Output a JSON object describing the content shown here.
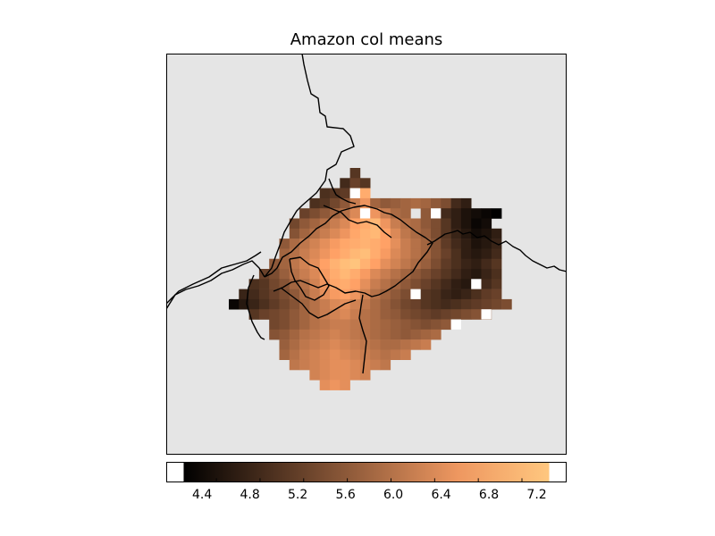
{
  "title": "Amazon col means",
  "colors": {
    "land_background": "#e5e5e5",
    "frame": "#000000",
    "river": "#000000",
    "cmap_low": "#000000",
    "cmap_high": "#ffc77f",
    "missing": "#ffffff"
  },
  "colorbar": {
    "cmap": "copper",
    "orientation": "horizontal",
    "placement": "bottom",
    "vmin": 4.1,
    "vmax": 7.45,
    "ticks": [
      "4.4",
      "4.8",
      "5.2",
      "5.6",
      "6.0",
      "6.4",
      "6.8",
      "7.2"
    ]
  },
  "chart_data": {
    "type": "heatmap",
    "title": "Amazon col means",
    "grid_origin_x": 0,
    "grid_origin_y": 0,
    "rows": [
      "............#..................",
      "...........###.................",
      ".........#####.....#...........",
      "........################.......",
      ".......###########.########....",
      "......####################.....",
      "......#####################....",
      ".....######################....",
      ".....######################....",
      "....#######################....",
      "...########################....",
      "..#########################....",
      ".##########################....",
      "############################...",
      "..########################.....",
      "....##################.........",
      "....#################..........",
      ".....###############...........",
      ".....#############.............",
      "......##########...............",
      "........######.................",
      ".........###..................."
    ],
    "values_note": "",
    "heat_values": [
      [
        0,
        0,
        0,
        0,
        0,
        0,
        0,
        0,
        0,
        0,
        0,
        0,
        5.0,
        0,
        0,
        0,
        0,
        0,
        0,
        0,
        0,
        0,
        0,
        0,
        0,
        0,
        0,
        0,
        0,
        0,
        0
      ],
      [
        0,
        0,
        0,
        0,
        0,
        0,
        0,
        0,
        0,
        0,
        0,
        4.8,
        5.2,
        5.0,
        0,
        0,
        0,
        0,
        0,
        0,
        0,
        0,
        0,
        0,
        0,
        0,
        0,
        0,
        0,
        0,
        0
      ],
      [
        0,
        0,
        0,
        0,
        0,
        0,
        0,
        0,
        0,
        4.9,
        5.0,
        5.1,
        6.6,
        7.0,
        0,
        0,
        0,
        0,
        0,
        0,
        0,
        0,
        0,
        0,
        0,
        0,
        0,
        0,
        0,
        0,
        0
      ],
      [
        0,
        0,
        0,
        0,
        0,
        0,
        0,
        0,
        4.9,
        5.0,
        5.3,
        5.6,
        6.2,
        6.6,
        5.8,
        5.6,
        5.7,
        5.8,
        5.9,
        5.8,
        5.6,
        5.4,
        4.8,
        4.6,
        0,
        0,
        0,
        0,
        0,
        0,
        0
      ],
      [
        0,
        0,
        0,
        0,
        0,
        0,
        0,
        5.2,
        5.4,
        5.6,
        5.8,
        6.0,
        6.4,
        6.8,
        6.6,
        6.2,
        5.9,
        5.8,
        0,
        5.6,
        5.2,
        4.8,
        4.6,
        4.4,
        4.3,
        4.2,
        4.1,
        0,
        0,
        0,
        0
      ],
      [
        0,
        0,
        0,
        0,
        0,
        0,
        5.3,
        5.6,
        5.8,
        6.0,
        6.2,
        6.4,
        6.8,
        7.0,
        7.2,
        6.6,
        6.2,
        6.0,
        5.9,
        5.6,
        5.4,
        5.0,
        4.6,
        4.4,
        4.2,
        4.3,
        0,
        0,
        0,
        0,
        0
      ],
      [
        0,
        0,
        0,
        0,
        0,
        0,
        5.5,
        5.8,
        6.0,
        6.2,
        6.4,
        6.6,
        6.9,
        7.1,
        7.2,
        6.8,
        6.4,
        6.1,
        5.9,
        5.7,
        5.4,
        5.0,
        4.7,
        4.5,
        4.3,
        4.4,
        4.6,
        0,
        0,
        0,
        0
      ],
      [
        0,
        0,
        0,
        0,
        0,
        5.6,
        5.9,
        6.1,
        6.3,
        6.5,
        6.7,
        6.9,
        7.0,
        7.1,
        7.0,
        6.8,
        6.5,
        6.2,
        6.0,
        5.8,
        5.5,
        5.1,
        4.8,
        4.6,
        4.4,
        4.5,
        4.7,
        0,
        0,
        0,
        0
      ],
      [
        0,
        0,
        0,
        0,
        0,
        5.8,
        6.0,
        6.2,
        6.4,
        6.6,
        6.8,
        7.0,
        7.2,
        7.3,
        7.0,
        6.7,
        6.4,
        6.2,
        6.0,
        5.8,
        5.5,
        5.2,
        4.9,
        4.6,
        4.5,
        4.6,
        4.8,
        0,
        0,
        0,
        0
      ],
      [
        0,
        0,
        0,
        0,
        5.6,
        5.8,
        6.1,
        6.3,
        6.5,
        6.8,
        7.1,
        7.3,
        7.4,
        7.1,
        6.8,
        6.5,
        6.3,
        6.1,
        5.9,
        5.7,
        5.4,
        5.1,
        4.9,
        4.7,
        4.6,
        4.8,
        5.0,
        0,
        0,
        0,
        0
      ],
      [
        0,
        0,
        0,
        5.2,
        5.4,
        5.7,
        6.0,
        6.2,
        6.4,
        6.7,
        7.0,
        7.2,
        7.0,
        6.7,
        6.4,
        6.2,
        6.0,
        5.8,
        5.6,
        5.4,
        5.2,
        5.0,
        4.8,
        4.6,
        4.5,
        4.7,
        4.9,
        0,
        0,
        0,
        0
      ],
      [
        0,
        0,
        4.9,
        5.0,
        5.3,
        5.5,
        5.8,
        6.0,
        6.3,
        6.6,
        6.9,
        7.0,
        6.8,
        6.5,
        6.2,
        6.0,
        5.8,
        5.6,
        5.4,
        5.2,
        5.0,
        4.8,
        4.6,
        4.5,
        4.6,
        4.8,
        5.0,
        0,
        0,
        0,
        0
      ],
      [
        0,
        4.7,
        4.8,
        5.0,
        5.2,
        5.4,
        5.6,
        5.9,
        6.2,
        6.5,
        6.7,
        6.8,
        6.6,
        6.3,
        6.0,
        5.8,
        5.6,
        5.4,
        5.2,
        5.0,
        4.9,
        4.7,
        4.6,
        4.7,
        4.9,
        5.1,
        5.2,
        0,
        0,
        0,
        0
      ],
      [
        4.2,
        4.5,
        4.7,
        4.9,
        5.1,
        5.3,
        5.5,
        5.8,
        6.0,
        6.2,
        6.4,
        6.5,
        6.3,
        6.1,
        5.9,
        5.7,
        5.5,
        5.3,
        5.2,
        5.0,
        4.9,
        4.8,
        4.9,
        5.0,
        5.1,
        5.2,
        5.3,
        5.4,
        0,
        0,
        0
      ],
      [
        0,
        0,
        5.0,
        5.2,
        5.3,
        5.4,
        5.6,
        5.8,
        6.0,
        6.2,
        6.3,
        6.4,
        6.2,
        6.0,
        5.9,
        5.7,
        5.6,
        5.4,
        5.3,
        5.2,
        5.1,
        5.2,
        5.3,
        5.4,
        5.5,
        5.6,
        0,
        0,
        0,
        0,
        0
      ],
      [
        0,
        0,
        0,
        0,
        5.3,
        5.4,
        5.6,
        5.8,
        6.0,
        6.1,
        6.2,
        6.2,
        6.1,
        6.0,
        5.9,
        5.8,
        5.7,
        5.6,
        5.5,
        5.4,
        5.5,
        5.6,
        0,
        0,
        0,
        0,
        0,
        0,
        0,
        0,
        0
      ],
      [
        0,
        0,
        0,
        0,
        5.5,
        5.6,
        5.8,
        6.0,
        6.1,
        6.2,
        6.3,
        6.2,
        6.1,
        6.0,
        5.9,
        5.8,
        5.7,
        5.6,
        5.7,
        5.8,
        5.9,
        0,
        0,
        0,
        0,
        0,
        0,
        0,
        0,
        0,
        0
      ],
      [
        0,
        0,
        0,
        0,
        0,
        5.7,
        5.9,
        6.1,
        6.2,
        6.3,
        6.4,
        6.3,
        6.2,
        6.1,
        6.0,
        5.9,
        5.9,
        6.0,
        6.1,
        6.2,
        0,
        0,
        0,
        0,
        0,
        0,
        0,
        0,
        0,
        0,
        0
      ],
      [
        0,
        0,
        0,
        0,
        0,
        5.8,
        6.0,
        6.2,
        6.3,
        6.4,
        6.5,
        6.4,
        6.3,
        6.2,
        6.1,
        6.0,
        6.1,
        6.2,
        0,
        0,
        0,
        0,
        0,
        0,
        0,
        0,
        0,
        0,
        0,
        0,
        0
      ],
      [
        0,
        0,
        0,
        0,
        0,
        0,
        6.1,
        6.2,
        6.3,
        6.4,
        6.5,
        6.5,
        6.4,
        6.3,
        6.2,
        6.1,
        0,
        0,
        0,
        0,
        0,
        0,
        0,
        0,
        0,
        0,
        0,
        0,
        0,
        0,
        0
      ],
      [
        0,
        0,
        0,
        0,
        0,
        0,
        0,
        0,
        6.3,
        6.4,
        6.5,
        6.5,
        6.4,
        6.3,
        0,
        0,
        0,
        0,
        0,
        0,
        0,
        0,
        0,
        0,
        0,
        0,
        0,
        0,
        0,
        0,
        0
      ],
      [
        0,
        0,
        0,
        0,
        0,
        0,
        0,
        0,
        0,
        6.5,
        6.6,
        6.5,
        0,
        0,
        0,
        0,
        0,
        0,
        0,
        0,
        0,
        0,
        0,
        0,
        0,
        0,
        0,
        0,
        0,
        0,
        0
      ]
    ]
  }
}
